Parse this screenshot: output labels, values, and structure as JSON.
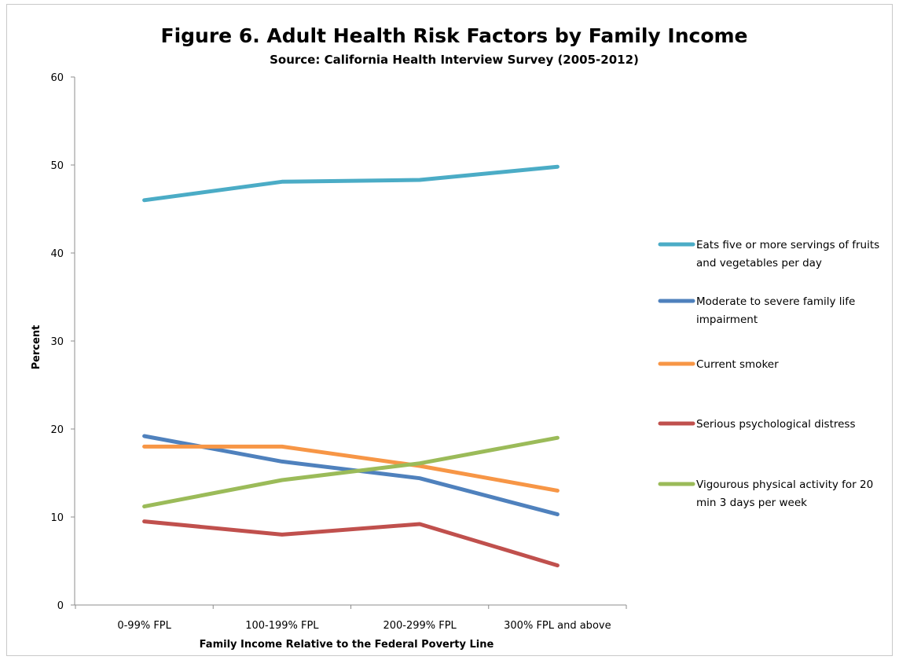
{
  "chart_data": {
    "type": "line",
    "title": "Figure 6. Adult Health Risk Factors by Family Income",
    "subtitle": "Source: California Health Interview Survey (2005-2012)",
    "xlabel": "Family Income Relative to the Federal Poverty Line",
    "ylabel": "Percent",
    "ylim": [
      0,
      60
    ],
    "yticks": [
      "0",
      "10",
      "20",
      "30",
      "40",
      "50",
      "60"
    ],
    "categories": [
      "0-99% FPL",
      "100-199% FPL",
      "200-299% FPL",
      "300% FPL and above"
    ],
    "grid": false,
    "legend_position": "right",
    "series": [
      {
        "name": "Eats five or more servings of fruits and vegetables per day",
        "legend_lines": [
          "Eats five or more servings of fruits",
          "and vegetables per day"
        ],
        "color": "#4bacc6",
        "values": [
          46.0,
          48.1,
          48.3,
          49.8
        ]
      },
      {
        "name": "Moderate to severe family life impairment",
        "legend_lines": [
          "Moderate to severe family life",
          "impairment"
        ],
        "color": "#4f81bd",
        "values": [
          19.2,
          16.3,
          14.4,
          10.3
        ]
      },
      {
        "name": "Current smoker",
        "legend_lines": [
          "Current smoker"
        ],
        "color": "#f79646",
        "values": [
          18.0,
          18.0,
          15.8,
          13.0
        ]
      },
      {
        "name": "Serious psychological distress",
        "legend_lines": [
          "Serious psychological distress"
        ],
        "color": "#c0504d",
        "values": [
          9.5,
          8.0,
          9.2,
          4.5
        ]
      },
      {
        "name": "Vigourous physical activity for 20 min 3 days per week",
        "legend_lines": [
          "Vigourous physical activity for 20",
          "min 3 days per week"
        ],
        "color": "#9bbb59",
        "values": [
          11.2,
          14.2,
          16.1,
          19.0
        ]
      }
    ]
  }
}
